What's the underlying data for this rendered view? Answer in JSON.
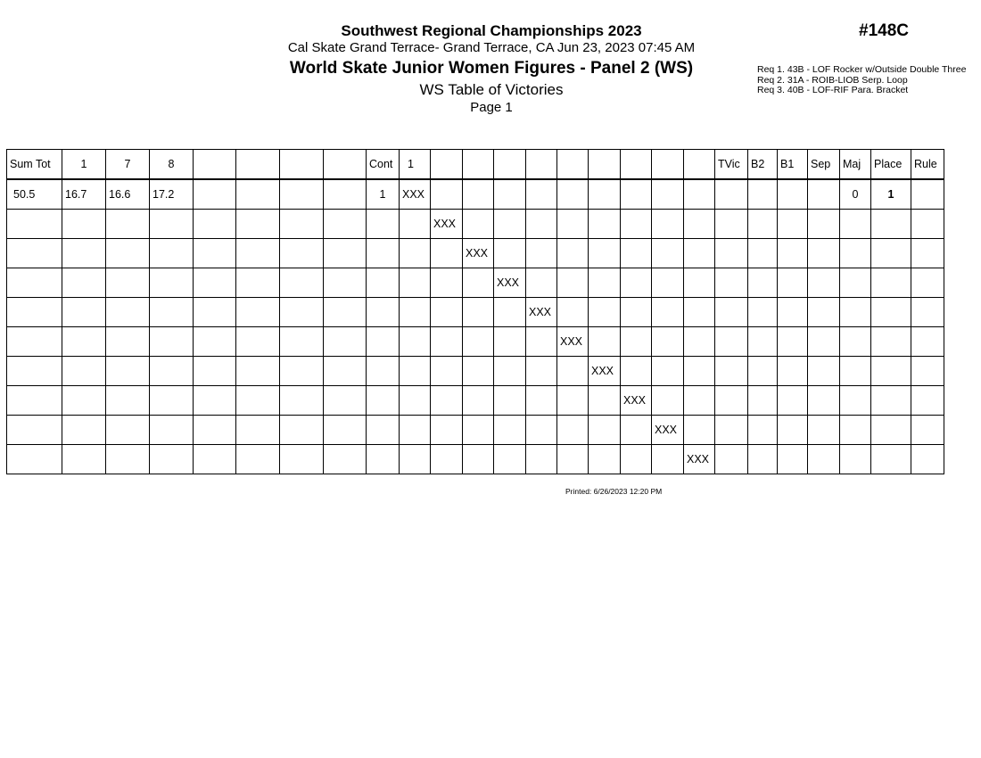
{
  "header": {
    "title": "Southwest Regional Championships 2023",
    "location": "Cal Skate Grand Terrace- Grand Terrace, CA  Jun 23, 2023  07:45 AM",
    "event": "World Skate Junior Women Figures - Panel 2 (WS)",
    "subtitle": "WS Table of Victories",
    "page": "Page 1",
    "event_number": "#148C"
  },
  "requirements": [
    "Req  1.  43B - LOF Rocker w/Outside Double Three",
    "Req  2.  31A - ROIB-LIOB Serp. Loop",
    "Req  3.  40B - LOF-RIF Para. Bracket"
  ],
  "table": {
    "columns": [
      "Sum Tot",
      "1",
      "7",
      "8",
      "",
      "",
      "",
      "",
      "Cont",
      "1",
      "",
      "",
      "",
      "",
      "",
      "",
      "",
      "",
      "",
      "TVic",
      "B2",
      "B1",
      "Sep",
      "Maj",
      "Place",
      "Rule"
    ],
    "rows": [
      [
        "50.5",
        "16.7",
        "16.6",
        "17.2",
        "",
        "",
        "",
        "",
        "1",
        "XXX",
        "",
        "",
        "",
        "",
        "",
        "",
        "",
        "",
        "",
        "",
        "",
        "",
        "",
        "0",
        "1",
        ""
      ],
      [
        "",
        "",
        "",
        "",
        "",
        "",
        "",
        "",
        "",
        "",
        "XXX",
        "",
        "",
        "",
        "",
        "",
        "",
        "",
        "",
        "",
        "",
        "",
        "",
        "",
        "",
        ""
      ],
      [
        "",
        "",
        "",
        "",
        "",
        "",
        "",
        "",
        "",
        "",
        "",
        "XXX",
        "",
        "",
        "",
        "",
        "",
        "",
        "",
        "",
        "",
        "",
        "",
        "",
        "",
        ""
      ],
      [
        "",
        "",
        "",
        "",
        "",
        "",
        "",
        "",
        "",
        "",
        "",
        "",
        "XXX",
        "",
        "",
        "",
        "",
        "",
        "",
        "",
        "",
        "",
        "",
        "",
        "",
        ""
      ],
      [
        "",
        "",
        "",
        "",
        "",
        "",
        "",
        "",
        "",
        "",
        "",
        "",
        "",
        "XXX",
        "",
        "",
        "",
        "",
        "",
        "",
        "",
        "",
        "",
        "",
        "",
        ""
      ],
      [
        "",
        "",
        "",
        "",
        "",
        "",
        "",
        "",
        "",
        "",
        "",
        "",
        "",
        "",
        "XXX",
        "",
        "",
        "",
        "",
        "",
        "",
        "",
        "",
        "",
        "",
        ""
      ],
      [
        "",
        "",
        "",
        "",
        "",
        "",
        "",
        "",
        "",
        "",
        "",
        "",
        "",
        "",
        "",
        "XXX",
        "",
        "",
        "",
        "",
        "",
        "",
        "",
        "",
        "",
        ""
      ],
      [
        "",
        "",
        "",
        "",
        "",
        "",
        "",
        "",
        "",
        "",
        "",
        "",
        "",
        "",
        "",
        "",
        "XXX",
        "",
        "",
        "",
        "",
        "",
        "",
        "",
        "",
        ""
      ],
      [
        "",
        "",
        "",
        "",
        "",
        "",
        "",
        "",
        "",
        "",
        "",
        "",
        "",
        "",
        "",
        "",
        "",
        "XXX",
        "",
        "",
        "",
        "",
        "",
        "",
        "",
        ""
      ],
      [
        "",
        "",
        "",
        "",
        "",
        "",
        "",
        "",
        "",
        "",
        "",
        "",
        "",
        "",
        "",
        "",
        "",
        "",
        "XXX",
        "",
        "",
        "",
        "",
        "",
        "",
        ""
      ]
    ]
  },
  "footer": {
    "printed": "Printed:  6/26/2023  12:20 PM"
  }
}
